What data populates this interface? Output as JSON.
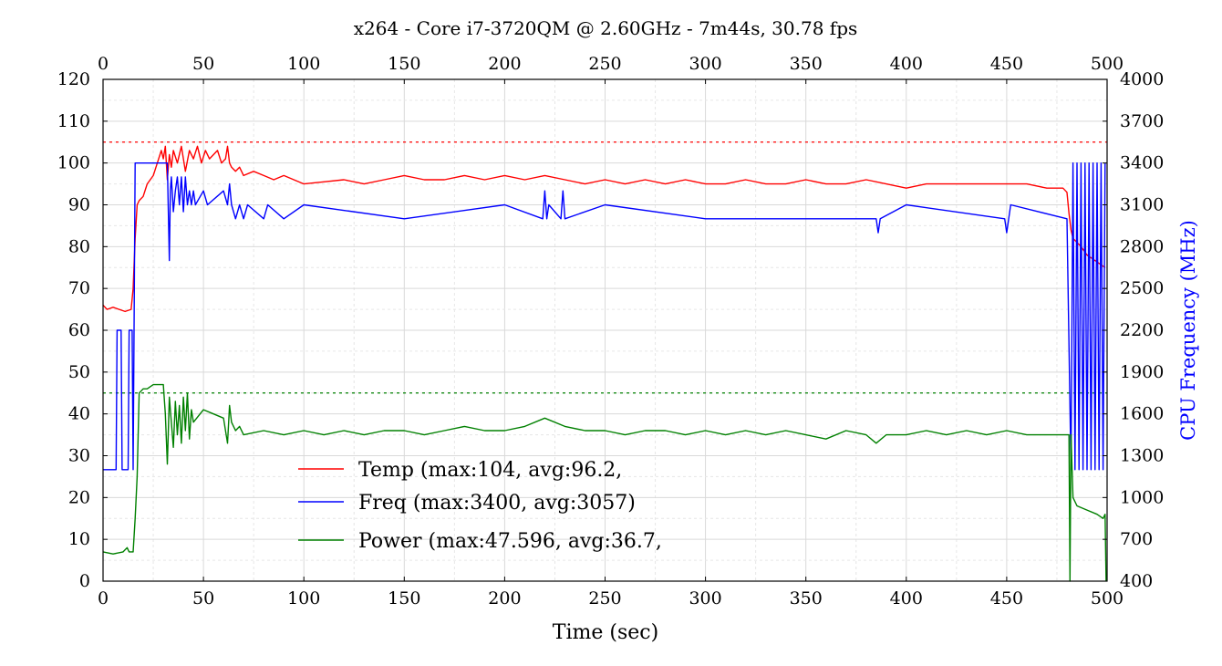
{
  "chart_data": {
    "type": "line",
    "title": "x264 - Core i7-3720QM @ 2.60GHz - 7m44s, 30.78 fps",
    "xlabel": "Time (sec)",
    "ylabel_left": "",
    "ylabel_right": "CPU Frequency (MHz)",
    "xlim": [
      0,
      500
    ],
    "ylim_left": [
      0,
      120
    ],
    "ylim_right": [
      400,
      4000
    ],
    "x_ticks": [
      0,
      50,
      100,
      150,
      200,
      250,
      300,
      350,
      400,
      450,
      500
    ],
    "y_ticks_left": [
      0,
      10,
      20,
      30,
      40,
      50,
      60,
      70,
      80,
      90,
      100,
      110,
      120
    ],
    "y_ticks_right": [
      400,
      700,
      1000,
      1300,
      1600,
      1900,
      2200,
      2500,
      2800,
      3100,
      3400,
      3700,
      4000
    ],
    "grid": true,
    "legend_position": "center-left",
    "reference_lines": [
      {
        "axis": "left",
        "y": 105,
        "color": "#ff0000"
      },
      {
        "axis": "left",
        "y": 45,
        "color": "#008000"
      }
    ],
    "series": [
      {
        "name": "Temp (max:104, avg:96.2,",
        "axis": "left",
        "color": "#ff0000",
        "x": [
          0,
          2,
          5,
          8,
          11,
          14,
          15,
          16,
          17,
          18,
          20,
          22,
          25,
          27,
          29,
          30,
          31,
          32,
          33,
          34,
          35,
          37,
          39,
          41,
          43,
          45,
          47,
          49,
          51,
          53,
          55,
          57,
          59,
          61,
          62,
          63,
          64,
          66,
          68,
          70,
          75,
          80,
          85,
          90,
          95,
          100,
          110,
          120,
          130,
          140,
          150,
          160,
          170,
          180,
          190,
          200,
          210,
          220,
          230,
          240,
          250,
          260,
          270,
          280,
          290,
          300,
          310,
          320,
          330,
          340,
          350,
          360,
          370,
          380,
          390,
          400,
          410,
          420,
          430,
          440,
          450,
          460,
          470,
          478,
          480,
          481,
          482,
          483,
          485,
          487,
          490,
          493,
          496,
          499
        ],
        "y": [
          66,
          65,
          65.5,
          65,
          64.5,
          65,
          70,
          82,
          90,
          91,
          92,
          95,
          97,
          100,
          103,
          101,
          104,
          96,
          102,
          99,
          103,
          100,
          104,
          98,
          103,
          101,
          104,
          100,
          103,
          101,
          102,
          103,
          100,
          101,
          104,
          100,
          99,
          98,
          99,
          97,
          98,
          97,
          96,
          97,
          96,
          95,
          95.5,
          96,
          95,
          96,
          97,
          96,
          96,
          97,
          96,
          97,
          96,
          97,
          96,
          95,
          96,
          95,
          96,
          95,
          96,
          95,
          95,
          96,
          95,
          95,
          96,
          95,
          95,
          96,
          95,
          94,
          95,
          95,
          95,
          95,
          95,
          95,
          94,
          94,
          93,
          88,
          84,
          82,
          81,
          80,
          78,
          77,
          76,
          75
        ]
      },
      {
        "name": "Freq (max:3400, avg:3057)",
        "axis": "right",
        "color": "#0000ff",
        "x": [
          0,
          6.5,
          7,
          9,
          9.5,
          12.5,
          13,
          14.5,
          15,
          16,
          16.5,
          32,
          33,
          33.5,
          34,
          35,
          36,
          37,
          38,
          39,
          40,
          41,
          42,
          43,
          44,
          45,
          46,
          50,
          52,
          60,
          62,
          63,
          64,
          66,
          68,
          70,
          72,
          80,
          82,
          90,
          100,
          150,
          200,
          219,
          220,
          221,
          222,
          228,
          229,
          230,
          250,
          300,
          385,
          386,
          387,
          400,
          449,
          450,
          451,
          452,
          480,
          482,
          483,
          484,
          485,
          486,
          487,
          488,
          489,
          490,
          491,
          492,
          493,
          494,
          495,
          496,
          497,
          498,
          499
        ],
        "y": [
          1200,
          1200,
          2200,
          2200,
          1200,
          1200,
          2200,
          2200,
          1200,
          3400,
          3400,
          3400,
          2700,
          3200,
          3300,
          3050,
          3200,
          3300,
          3100,
          3300,
          3050,
          3300,
          3100,
          3200,
          3100,
          3200,
          3100,
          3200,
          3100,
          3200,
          3100,
          3250,
          3100,
          3000,
          3100,
          3000,
          3100,
          3000,
          3100,
          3000,
          3100,
          3000,
          3100,
          3000,
          3200,
          3000,
          3100,
          3000,
          3200,
          3000,
          3100,
          3000,
          3000,
          2900,
          3000,
          3100,
          3000,
          2900,
          3000,
          3100,
          3000,
          1200,
          3400,
          1200,
          3400,
          1200,
          3400,
          1200,
          3400,
          1200,
          3400,
          1200,
          3400,
          1200,
          3400,
          1200,
          3400,
          1200,
          3400
        ]
      },
      {
        "name": "Power (max:47.596, avg:36.7,",
        "axis": "left",
        "color": "#008000",
        "x": [
          0,
          5,
          10,
          12,
          13,
          15,
          16,
          17,
          18,
          20,
          22,
          25,
          28,
          30,
          31,
          32,
          33,
          34,
          35,
          36,
          37,
          38,
          39,
          40,
          41,
          42,
          43,
          44,
          45,
          50,
          55,
          60,
          62,
          63,
          64,
          66,
          68,
          70,
          80,
          90,
          100,
          110,
          120,
          130,
          140,
          150,
          160,
          170,
          180,
          190,
          200,
          210,
          220,
          230,
          240,
          250,
          260,
          270,
          280,
          290,
          300,
          310,
          320,
          330,
          340,
          350,
          360,
          370,
          380,
          385,
          390,
          400,
          410,
          420,
          430,
          440,
          450,
          460,
          470,
          480,
          481,
          481.5,
          482,
          483,
          485,
          490,
          495,
          498,
          499,
          499.5
        ],
        "y": [
          7,
          6.5,
          7,
          8,
          7,
          7,
          15,
          25,
          45,
          46,
          46,
          47,
          47,
          47,
          40,
          28,
          44,
          38,
          32,
          43,
          35,
          42,
          33,
          44,
          36,
          45,
          34,
          41,
          38,
          41,
          40,
          39,
          33,
          42,
          38,
          36,
          37,
          35,
          36,
          35,
          36,
          35,
          36,
          35,
          36,
          36,
          35,
          36,
          37,
          36,
          36,
          37,
          39,
          37,
          36,
          36,
          35,
          36,
          36,
          35,
          36,
          35,
          36,
          35,
          36,
          35,
          34,
          36,
          35,
          33,
          35,
          35,
          36,
          35,
          36,
          35,
          36,
          35,
          35,
          35,
          35,
          0,
          35,
          20,
          18,
          17,
          16,
          15,
          16,
          0
        ]
      }
    ]
  }
}
